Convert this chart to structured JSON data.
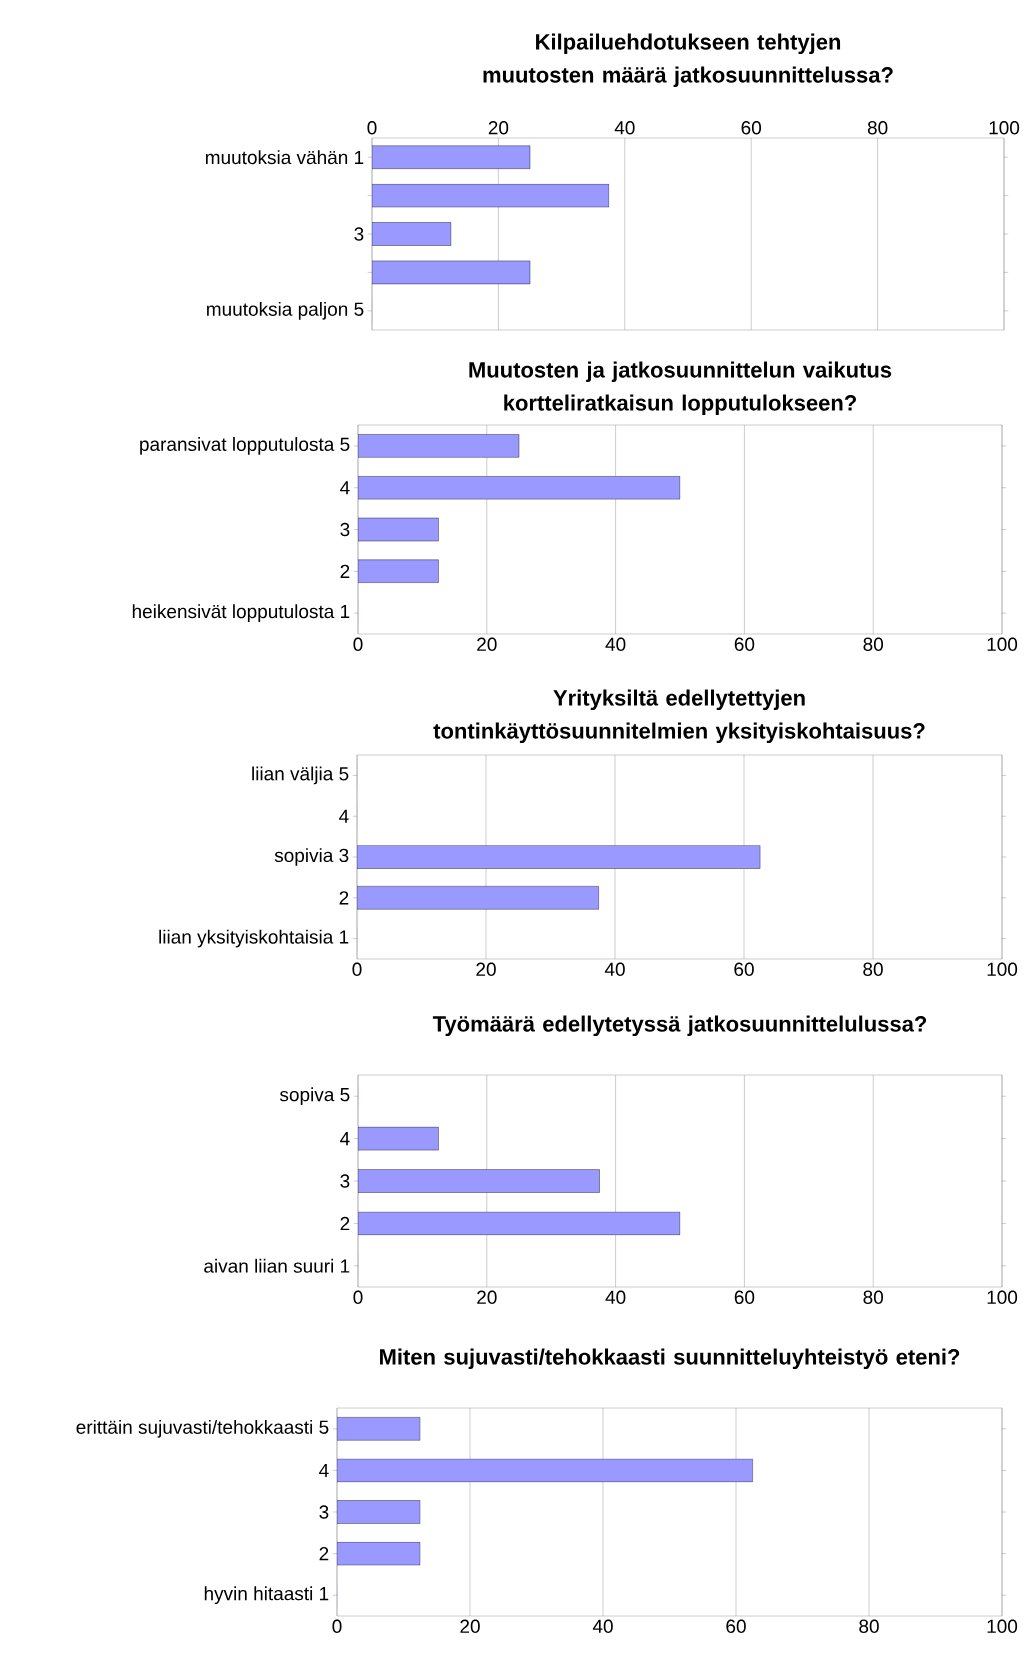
{
  "chart_data": [
    {
      "type": "bar",
      "orientation": "horizontal",
      "title": "Kilpailuehdotukseen tehtyjen muutosten määrä jatkosuunnittelussa?",
      "categories": [
        "muutoksia vähän 1",
        null,
        "3",
        null,
        "muutoksia paljon 5"
      ],
      "series": [
        {
          "values": [
            25,
            37.5,
            12.5,
            25,
            0
          ],
          "color": "#9999ff",
          "axis": "x2"
        }
      ],
      "x2lim": [
        0,
        100
      ],
      "x2ticks": [
        0,
        20,
        40,
        60,
        80,
        100
      ],
      "grid": "x"
    },
    {
      "type": "bar",
      "orientation": "horizontal",
      "title": "Muutosten ja jatkosuunnittelun vaikutus kortteliratkaisun lopputulokseen?",
      "categories": [
        "paransivat lopputulosta 5",
        "4",
        "3",
        "2",
        "heikensivät lopputulosta 1"
      ],
      "values": [
        25,
        50,
        12.5,
        12.5,
        0
      ],
      "color": "#9999ff",
      "xlim": [
        0,
        100
      ],
      "xticks": [
        0,
        20,
        40,
        60,
        80,
        100
      ],
      "grid": "x"
    },
    {
      "type": "bar",
      "orientation": "horizontal",
      "title": "Yrityksiltä edellytettyjen tontinkäyttösuunnitelmien yksityiskohtaisuus?",
      "categories": [
        "liian väljia 5",
        "4",
        "sopivia 3",
        "2",
        "liian yksityiskohtaisia 1"
      ],
      "values": [
        0,
        0,
        62.5,
        37.5,
        0
      ],
      "color": "#9999ff",
      "xlim": [
        0,
        100
      ],
      "xticks": [
        0,
        20,
        40,
        60,
        80,
        100
      ],
      "grid": "x"
    },
    {
      "type": "bar",
      "orientation": "horizontal",
      "title": "Työmäärä edellytetyssä jatkosuunnittelulussa?",
      "categories": [
        "sopiva 5",
        "4",
        "3",
        "2",
        "aivan liian suuri 1"
      ],
      "values": [
        0,
        12.5,
        37.5,
        50,
        0
      ],
      "color": "#9999ff",
      "xlim": [
        0,
        100
      ],
      "xticks": [
        0,
        20,
        40,
        60,
        80,
        100
      ],
      "grid": "x"
    },
    {
      "type": "bar",
      "orientation": "horizontal",
      "title": "Miten sujuvasti/tehokkaasti suunnitteluyhteistyö eteni?",
      "categories": [
        "erittäin sujuvasti/tehokkaasti 5",
        "4",
        "3",
        "2",
        "hyvin hitaasti 1"
      ],
      "values": [
        12.5,
        62.5,
        12.5,
        12.5,
        0
      ],
      "color": "#9999ff",
      "xlim": [
        0,
        100
      ],
      "xticks": [
        0,
        20,
        40,
        60,
        80,
        100
      ],
      "grid": "x"
    }
  ]
}
